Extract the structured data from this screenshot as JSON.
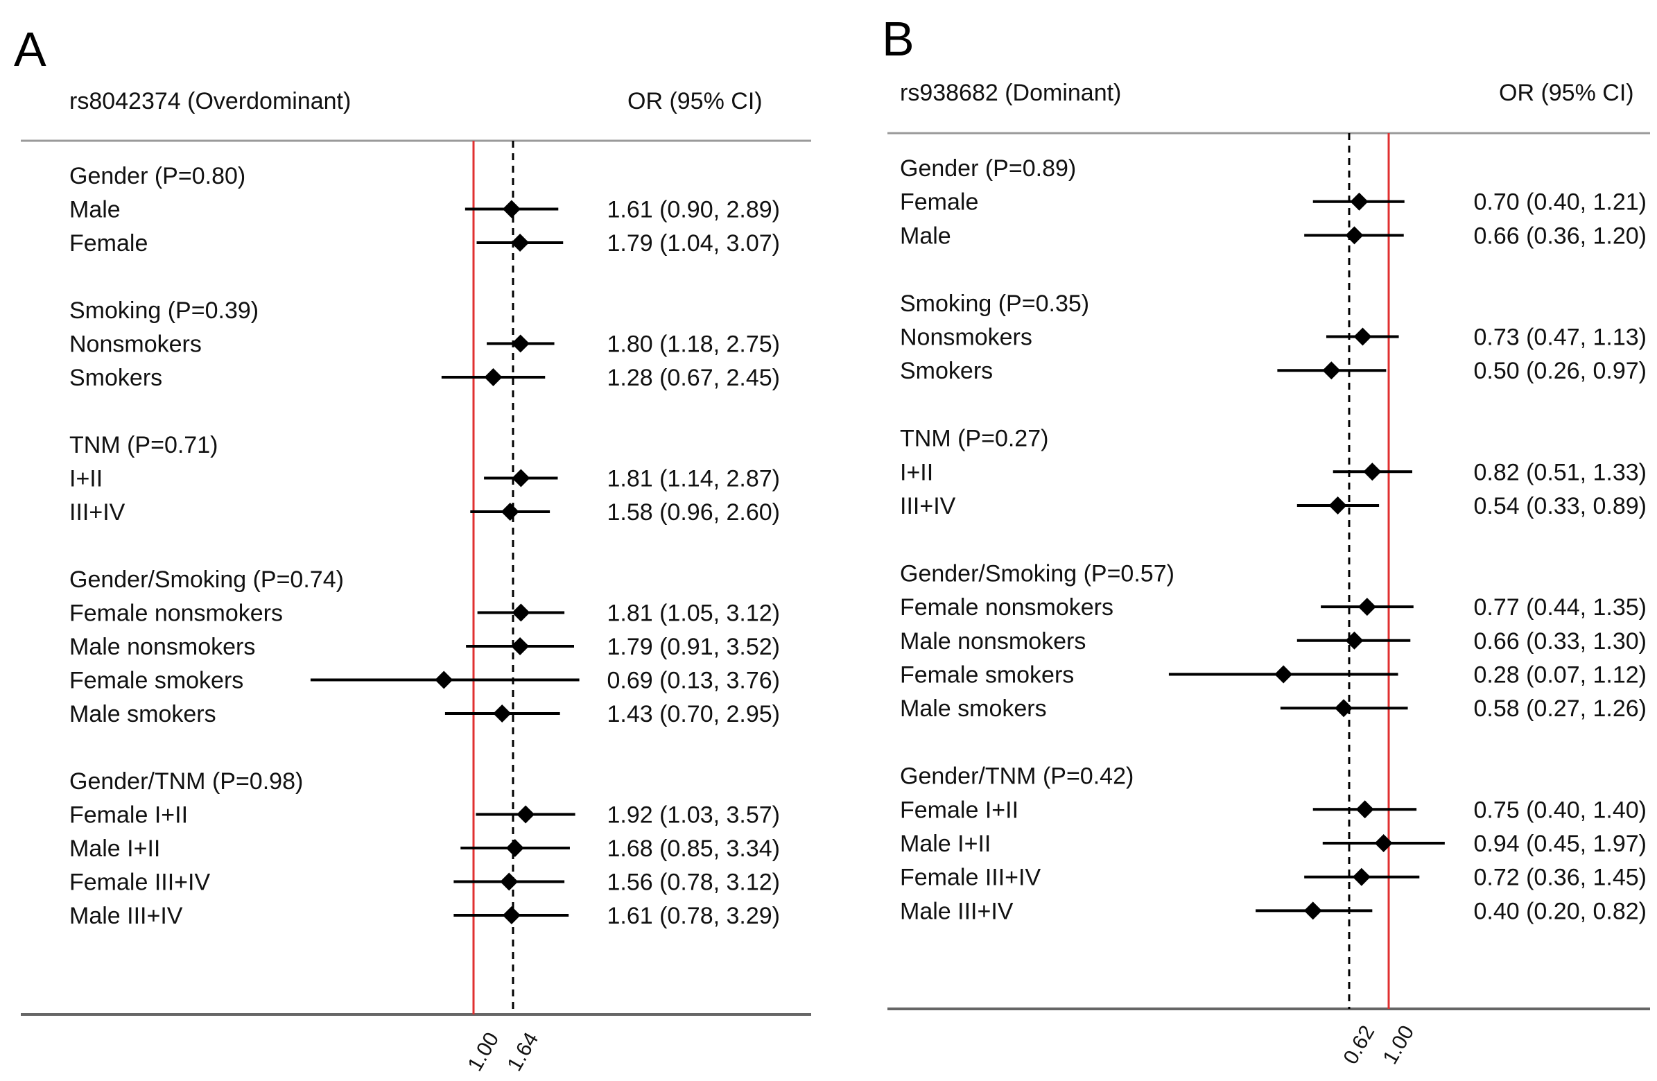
{
  "chart_data": [
    {
      "type": "forest",
      "panel": "A",
      "title": "rs8042374 (Overdominant)",
      "value_header": "OR (95% CI)",
      "null_line": 1.0,
      "overall_or": 1.64,
      "tick_labels": [
        "1.00",
        "1.64"
      ],
      "groups": [
        {
          "label": "Gender (P=0.80)",
          "rows": [
            {
              "label": "Male",
              "or": 1.61,
              "lo": 0.9,
              "hi": 2.89,
              "text": "1.61 (0.90, 2.89)"
            },
            {
              "label": "Female",
              "or": 1.79,
              "lo": 1.04,
              "hi": 3.07,
              "text": "1.79 (1.04, 3.07)"
            }
          ]
        },
        {
          "label": "Smoking (P=0.39)",
          "rows": [
            {
              "label": "Nonsmokers",
              "or": 1.8,
              "lo": 1.18,
              "hi": 2.75,
              "text": "1.80 (1.18, 2.75)"
            },
            {
              "label": "Smokers",
              "or": 1.28,
              "lo": 0.67,
              "hi": 2.45,
              "text": "1.28 (0.67, 2.45)"
            }
          ]
        },
        {
          "label": "TNM (P=0.71)",
          "rows": [
            {
              "label": "I+II",
              "or": 1.81,
              "lo": 1.14,
              "hi": 2.87,
              "text": "1.81 (1.14, 2.87)"
            },
            {
              "label": "III+IV",
              "or": 1.58,
              "lo": 0.96,
              "hi": 2.6,
              "text": "1.58 (0.96, 2.60)"
            }
          ]
        },
        {
          "label": "Gender/Smoking (P=0.74)",
          "rows": [
            {
              "label": "Female nonsmokers",
              "or": 1.81,
              "lo": 1.05,
              "hi": 3.12,
              "text": "1.81 (1.05, 3.12)"
            },
            {
              "label": "Male nonsmokers",
              "or": 1.79,
              "lo": 0.91,
              "hi": 3.52,
              "text": "1.79 (0.91, 3.52)"
            },
            {
              "label": "Female smokers",
              "or": 0.69,
              "lo": 0.13,
              "hi": 3.76,
              "text": "0.69 (0.13, 3.76)"
            },
            {
              "label": "Male smokers",
              "or": 1.43,
              "lo": 0.7,
              "hi": 2.95,
              "text": "1.43 (0.70, 2.95)"
            }
          ]
        },
        {
          "label": "Gender/TNM (P=0.98)",
          "rows": [
            {
              "label": "Female I+II",
              "or": 1.92,
              "lo": 1.03,
              "hi": 3.57,
              "text": "1.92 (1.03, 3.57)"
            },
            {
              "label": "Male I+II",
              "or": 1.68,
              "lo": 0.85,
              "hi": 3.34,
              "text": "1.68 (0.85, 3.34)"
            },
            {
              "label": "Female III+IV",
              "or": 1.56,
              "lo": 0.78,
              "hi": 3.12,
              "text": "1.56 (0.78, 3.12)"
            },
            {
              "label": "Male III+IV",
              "or": 1.61,
              "lo": 0.78,
              "hi": 3.29,
              "text": "1.61 (0.78, 3.29)"
            }
          ]
        }
      ]
    },
    {
      "type": "forest",
      "panel": "B",
      "title": "rs938682 (Dominant)",
      "value_header": "OR (95% CI)",
      "null_line": 1.0,
      "overall_or": 0.62,
      "tick_labels": [
        "0.62",
        "1.00"
      ],
      "groups": [
        {
          "label": "Gender (P=0.89)",
          "rows": [
            {
              "label": "Female",
              "or": 0.7,
              "lo": 0.4,
              "hi": 1.21,
              "text": "0.70 (0.40, 1.21)"
            },
            {
              "label": "Male",
              "or": 0.66,
              "lo": 0.36,
              "hi": 1.2,
              "text": "0.66 (0.36, 1.20)"
            }
          ]
        },
        {
          "label": "Smoking (P=0.35)",
          "rows": [
            {
              "label": "Nonsmokers",
              "or": 0.73,
              "lo": 0.47,
              "hi": 1.13,
              "text": "0.73 (0.47, 1.13)"
            },
            {
              "label": "Smokers",
              "or": 0.5,
              "lo": 0.26,
              "hi": 0.97,
              "text": "0.50 (0.26, 0.97)"
            }
          ]
        },
        {
          "label": "TNM (P=0.27)",
          "rows": [
            {
              "label": "I+II",
              "or": 0.82,
              "lo": 0.51,
              "hi": 1.33,
              "text": "0.82 (0.51, 1.33)"
            },
            {
              "label": "III+IV",
              "or": 0.54,
              "lo": 0.33,
              "hi": 0.89,
              "text": "0.54 (0.33, 0.89)"
            }
          ]
        },
        {
          "label": "Gender/Smoking (P=0.57)",
          "rows": [
            {
              "label": "Female nonsmokers",
              "or": 0.77,
              "lo": 0.44,
              "hi": 1.35,
              "text": "0.77 (0.44, 1.35)"
            },
            {
              "label": "Male nonsmokers",
              "or": 0.66,
              "lo": 0.33,
              "hi": 1.3,
              "text": "0.66 (0.33, 1.30)"
            },
            {
              "label": "Female smokers",
              "or": 0.28,
              "lo": 0.07,
              "hi": 1.12,
              "text": "0.28 (0.07, 1.12)"
            },
            {
              "label": "Male smokers",
              "or": 0.58,
              "lo": 0.27,
              "hi": 1.26,
              "text": "0.58 (0.27, 1.26)"
            }
          ]
        },
        {
          "label": "Gender/TNM (P=0.42)",
          "rows": [
            {
              "label": "Female I+II",
              "or": 0.75,
              "lo": 0.4,
              "hi": 1.4,
              "text": "0.75 (0.40, 1.40)"
            },
            {
              "label": "Male I+II",
              "or": 0.94,
              "lo": 0.45,
              "hi": 1.97,
              "text": "0.94 (0.45, 1.97)"
            },
            {
              "label": "Female III+IV",
              "or": 0.72,
              "lo": 0.36,
              "hi": 1.45,
              "text": "0.72 (0.36, 1.45)"
            },
            {
              "label": "Male III+IV",
              "or": 0.4,
              "lo": 0.2,
              "hi": 0.82,
              "text": "0.40 (0.20, 0.82)"
            }
          ]
        }
      ]
    }
  ],
  "colors": {
    "null_line": "#e03030",
    "axis": "#666666",
    "marker": "#000000"
  }
}
